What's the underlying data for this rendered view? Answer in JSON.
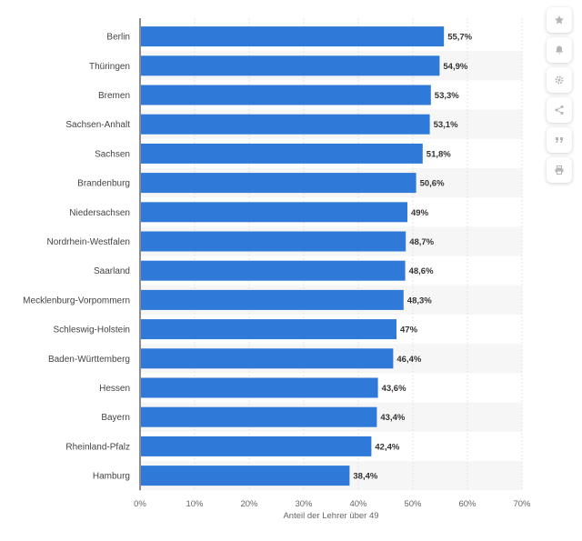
{
  "chart_data": {
    "type": "bar",
    "orientation": "horizontal",
    "categories": [
      "Berlin",
      "Thüringen",
      "Bremen",
      "Sachsen-Anhalt",
      "Sachsen",
      "Brandenburg",
      "Niedersachsen",
      "Nordrhein-Westfalen",
      "Saarland",
      "Mecklenburg-Vorpommern",
      "Schleswig-Holstein",
      "Baden-Württemberg",
      "Hessen",
      "Bayern",
      "Rheinland-Pfalz",
      "Hamburg"
    ],
    "values": [
      55.7,
      54.9,
      53.3,
      53.1,
      51.8,
      50.6,
      49,
      48.7,
      48.6,
      48.3,
      47,
      46.4,
      43.6,
      43.4,
      42.4,
      38.4
    ],
    "value_labels": [
      "55,7%",
      "54,9%",
      "53,3%",
      "53,1%",
      "51,8%",
      "50,6%",
      "49%",
      "48,7%",
      "48,6%",
      "48,3%",
      "47%",
      "46,4%",
      "43,6%",
      "43,4%",
      "42,4%",
      "38,4%"
    ],
    "xlabel": "Anteil der Lehrer über 49",
    "ylabel": "",
    "xlim": [
      0,
      70
    ],
    "x_ticks": [
      0,
      10,
      20,
      30,
      40,
      50,
      60,
      70
    ],
    "x_tick_labels": [
      "0%",
      "10%",
      "20%",
      "30%",
      "40%",
      "50%",
      "60%",
      "70%"
    ],
    "grid": true,
    "bar_color": "#2f7ad9",
    "alt_row_color": "#f6f6f6"
  },
  "toolbar": {
    "icons": [
      "star-icon",
      "bell-icon",
      "gear-icon",
      "share-icon",
      "quote-icon",
      "print-icon"
    ]
  }
}
